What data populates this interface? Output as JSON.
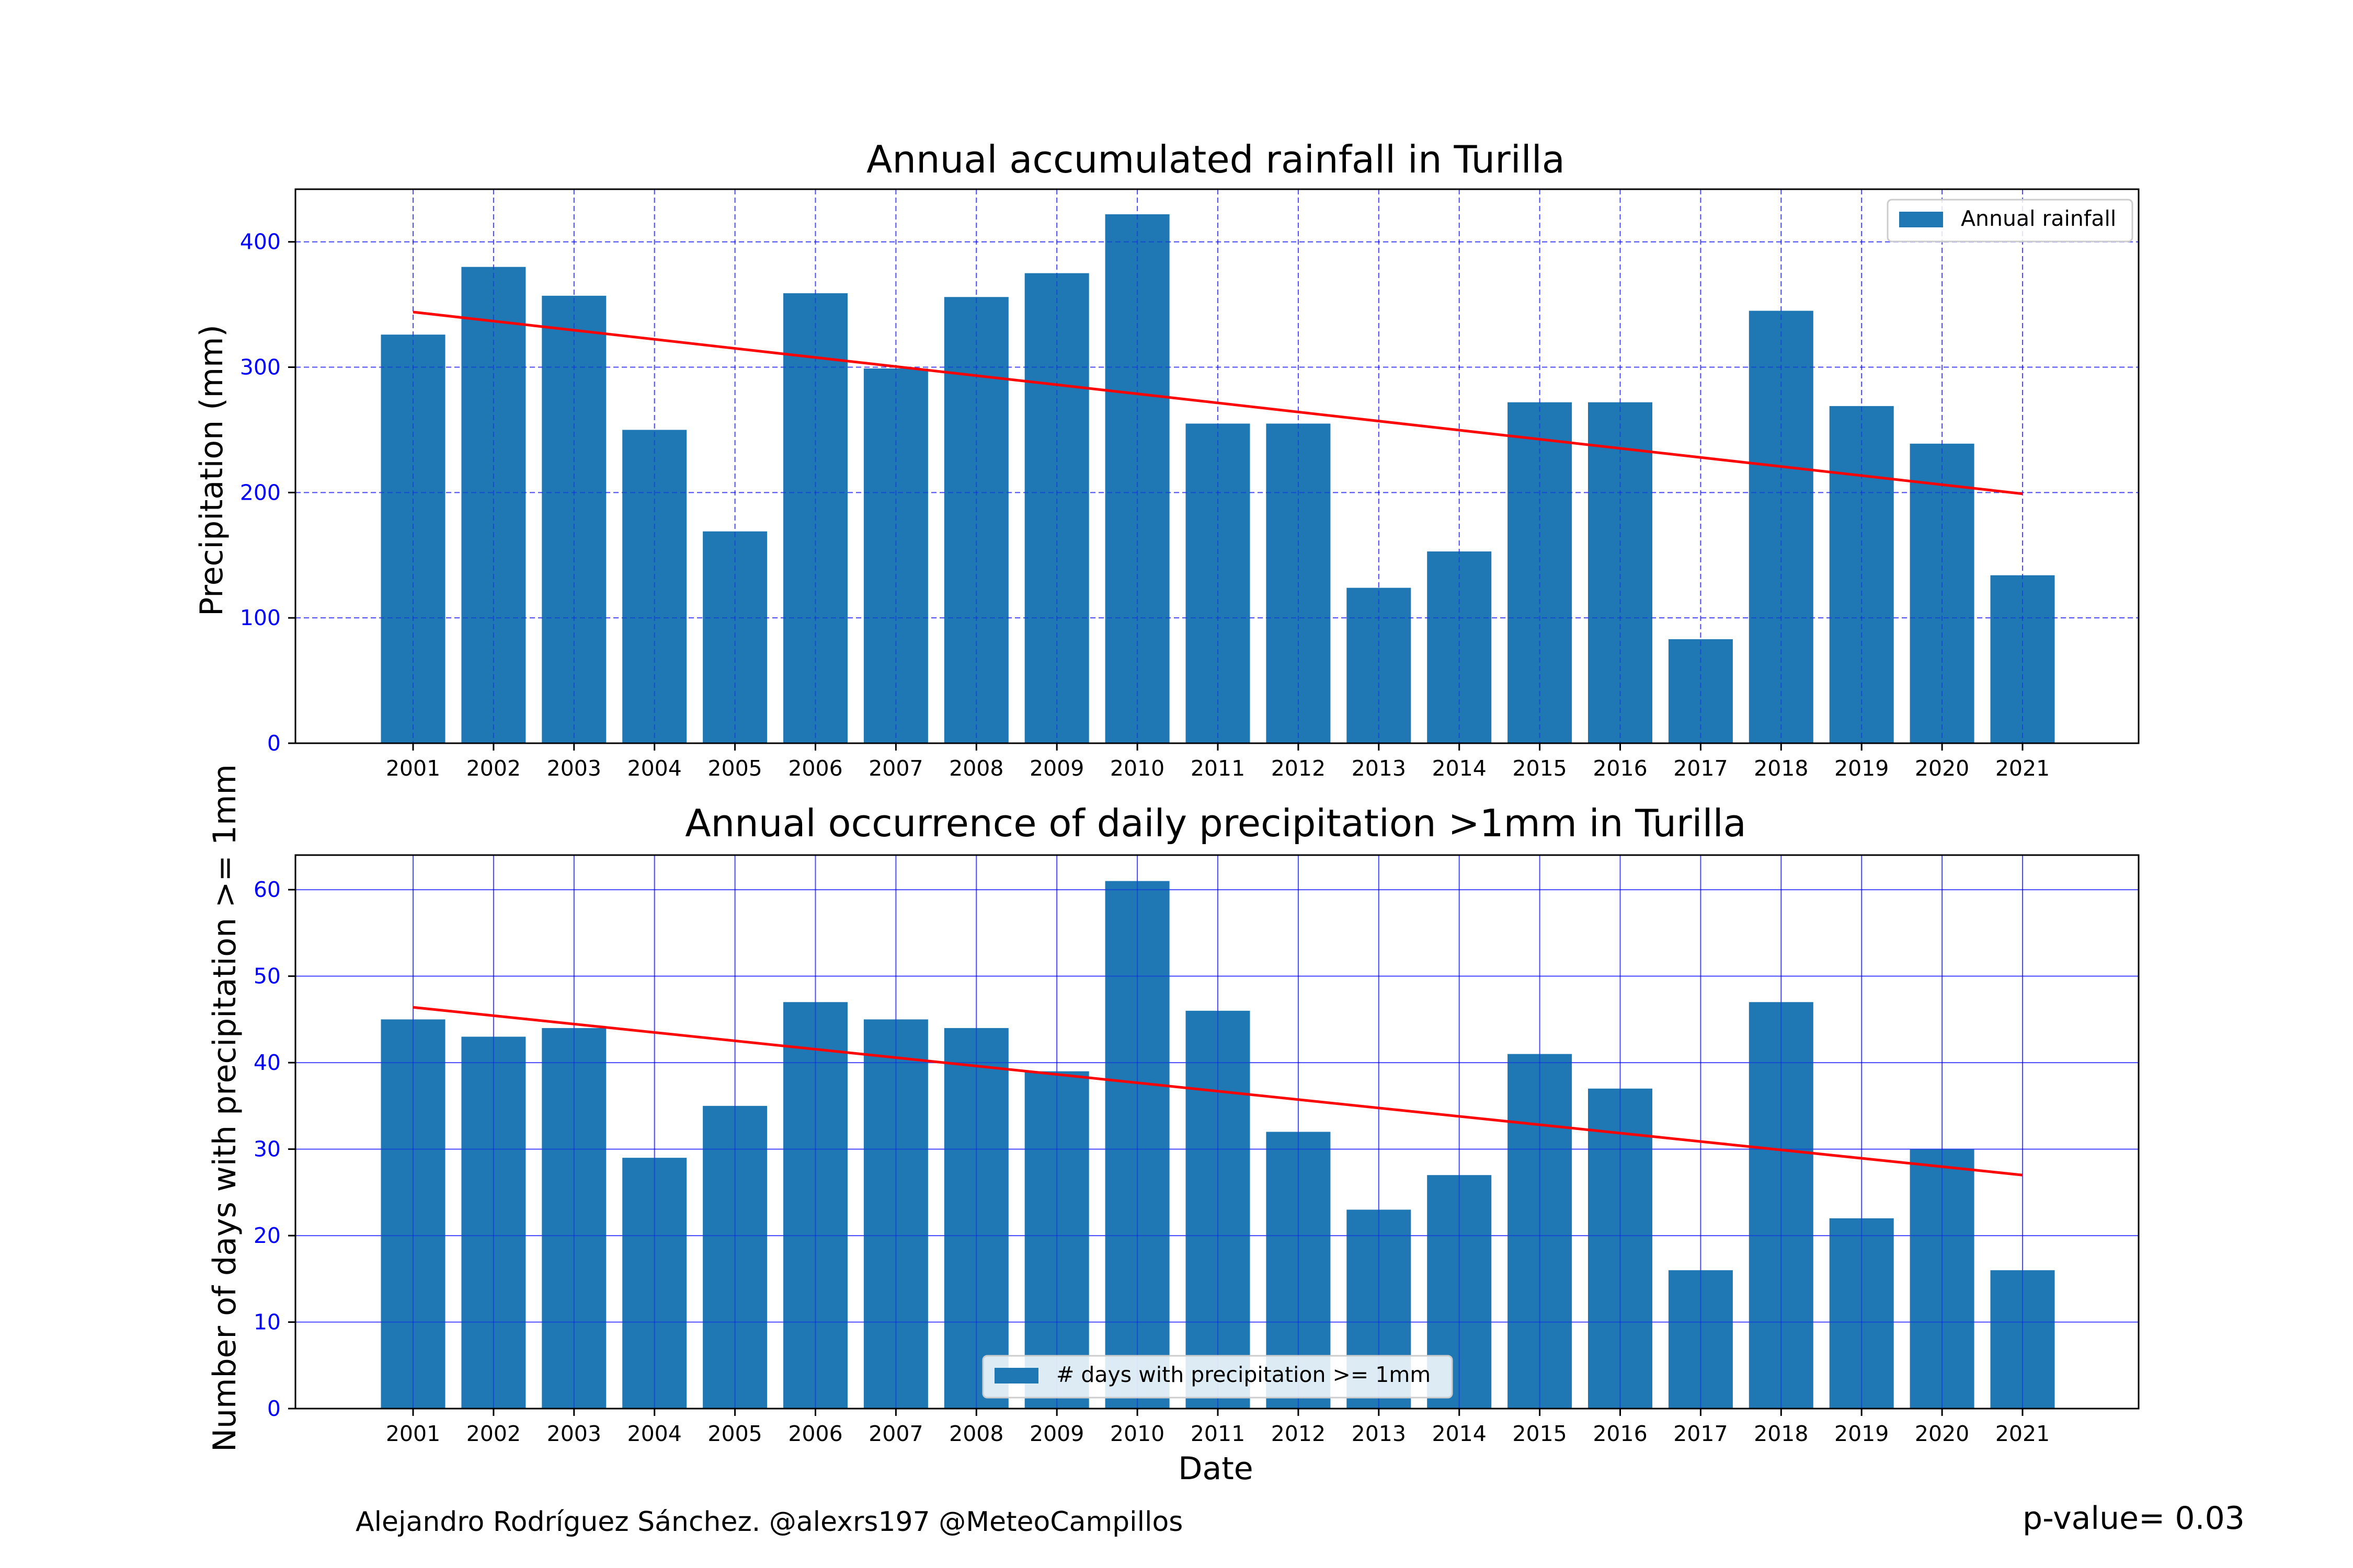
{
  "footer": {
    "credit": "Alejandro Rodríguez Sánchez. @alexrs197 @MeteoCampillos",
    "p_value": "p-value= 0.03"
  },
  "colors": {
    "bar": "#1f77b4",
    "trend": "#ff0000",
    "grid": "#0000ff",
    "tick_label": "#0000ff"
  },
  "chart_data": [
    {
      "type": "bar",
      "title": "Annual accumulated rainfall in Turilla",
      "xlabel": "",
      "ylabel": "Precipitation (mm)",
      "categories": [
        "2001",
        "2002",
        "2003",
        "2004",
        "2005",
        "2006",
        "2007",
        "2008",
        "2009",
        "2010",
        "2011",
        "2012",
        "2013",
        "2014",
        "2015",
        "2016",
        "2017",
        "2018",
        "2019",
        "2020",
        "2021"
      ],
      "series": [
        {
          "name": "Annual rainfall",
          "values": [
            326,
            380,
            357,
            250,
            169,
            359,
            299,
            356,
            375,
            422,
            255,
            255,
            124,
            153,
            272,
            272,
            83,
            345,
            269,
            239,
            134
          ]
        }
      ],
      "trend": {
        "start": 344,
        "end": 199
      },
      "ylim": [
        0,
        442
      ],
      "yticks": [
        0,
        100,
        200,
        300,
        400
      ],
      "grid": "dashed",
      "legend": "top-right"
    },
    {
      "type": "bar",
      "title": "Annual occurrence of daily precipitation >1mm in Turilla",
      "xlabel": "Date",
      "ylabel": "Number of days with precipitation >= 1mm",
      "categories": [
        "2001",
        "2002",
        "2003",
        "2004",
        "2005",
        "2006",
        "2007",
        "2008",
        "2009",
        "2010",
        "2011",
        "2012",
        "2013",
        "2014",
        "2015",
        "2016",
        "2017",
        "2018",
        "2019",
        "2020",
        "2021"
      ],
      "series": [
        {
          "name": "# days with precipitation >= 1mm",
          "values": [
            45,
            43,
            44,
            29,
            35,
            47,
            45,
            44,
            39,
            61,
            46,
            32,
            23,
            27,
            41,
            37,
            16,
            47,
            22,
            30,
            16
          ]
        }
      ],
      "trend": {
        "start": 46.4,
        "end": 27
      },
      "ylim": [
        0,
        64
      ],
      "yticks": [
        0,
        10,
        20,
        30,
        40,
        50,
        60
      ],
      "grid": "solid",
      "legend": "bottom-center"
    }
  ]
}
